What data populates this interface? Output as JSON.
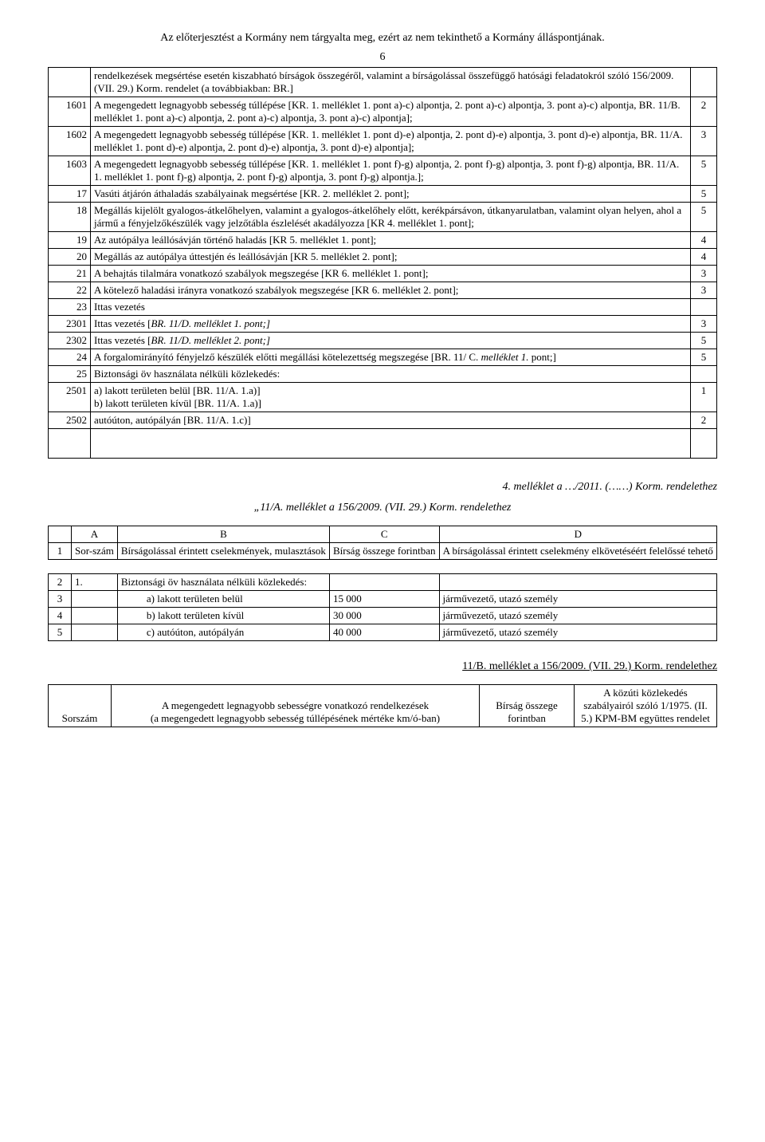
{
  "header": "Az előterjesztést a Kormány nem tárgyalta meg, ezért az nem tekinthető a Kormány álláspontjának.",
  "page_number": "6",
  "table1": {
    "rows": [
      {
        "n": "",
        "text": "rendelkezések megsértése esetén kiszabható bírságok összegéről, valamint a bírságolással összefüggő hatósági feladatokról szóló 156/2009. (VII. 29.) Korm. rendelet (a továbbiakban: BR.]",
        "v": ""
      },
      {
        "n": "1601",
        "text": "A megengedett legnagyobb sebesség túllépése [KR. 1. melléklet 1. pont a)-c) alpontja, 2. pont a)-c) alpontja, 3. pont a)-c) alpontja, BR. 11/B. melléklet 1. pont a)-c) alpontja, 2. pont a)-c) alpontja, 3. pont a)-c) alpontja];",
        "v": "2"
      },
      {
        "n": "1602",
        "text": "A megengedett legnagyobb sebesség túllépése [KR. 1. melléklet 1. pont d)-e) alpontja, 2. pont d)-e) alpontja, 3. pont d)-e) alpontja, BR. 11/A. melléklet 1. pont d)-e) alpontja, 2. pont d)-e) alpontja, 3. pont d)-e) alpontja];",
        "v": "3"
      },
      {
        "n": "1603",
        "text": "A megengedett legnagyobb sebesség túllépése [KR. 1. melléklet 1. pont f)-g) alpontja, 2. pont f)-g) alpontja, 3. pont f)-g) alpontja, BR. 11/A. 1. melléklet 1. pont f)-g) alpontja, 2. pont f)-g) alpontja, 3. pont f)-g) alpontja.];",
        "v": "5"
      },
      {
        "n": "17",
        "text": "Vasúti átjárón áthaladás szabályainak megsértése [KR. 2. melléklet 2. pont];",
        "v": "5"
      },
      {
        "n": "18",
        "text": "Megállás kijelölt gyalogos-átkelőhelyen, valamint a gyalogos-átkelőhely előtt, kerékpársávon, útkanyarulatban, valamint olyan helyen, ahol a jármű a fényjelzőkészülék vagy jelzőtábla észlelését akadályozza [KR 4. melléklet 1. pont];",
        "v": "5"
      },
      {
        "n": "19",
        "text": "Az autópálya leállósávján történő haladás [KR 5. melléklet 1. pont];",
        "v": "4"
      },
      {
        "n": "20",
        "text": "Megállás az autópálya úttestjén és leállósávján [KR 5. melléklet 2. pont];",
        "v": "4"
      },
      {
        "n": "21",
        "text": "A behajtás tilalmára vonatkozó szabályok megszegése [KR 6. melléklet 1. pont];",
        "v": "3"
      },
      {
        "n": "22",
        "text": "A kötelező haladási irányra vonatkozó szabályok megszegése [KR 6. melléklet 2. pont];",
        "v": "3"
      },
      {
        "n": "23",
        "text": "Ittas vezetés",
        "v": ""
      },
      {
        "n": "2301",
        "text": "Ittas vezetés [BR. 11/D. melléklet 1. pont;]",
        "v": "3",
        "italic": true
      },
      {
        "n": "2302",
        "text": "Ittas vezetés [BR. 11/D. melléklet 2. pont;]",
        "v": "5",
        "italic": true
      },
      {
        "n": "24",
        "text": " A forgalomirányító fényjelző készülék előtti megállási kötelezettség megszegése [BR. 11/ C. melléklet 1. pont;]",
        "v": "5",
        "italic2": true
      },
      {
        "n": "25",
        "text": "Biztonsági öv használata nélküli közlekedés:",
        "v": ""
      },
      {
        "n": "2501",
        "text": "a) lakott területen belül [BR. 11/A. 1.a)]\nb) lakott területen kívül [BR. 11/A. 1.a)]",
        "v": "1"
      },
      {
        "n": "2502",
        "text": "autóúton, autópályán [BR. 11/A. 1.c)]",
        "v": "2"
      }
    ]
  },
  "sec4": {
    "title": "4. melléklet a …/2011. (……) Korm. rendelethez",
    "subtitle": "„11/A. melléklet a 156/2009. (VII. 29.) Korm. rendelethez"
  },
  "table2": {
    "head": [
      "A",
      "B",
      "C",
      "D"
    ],
    "row1": {
      "n": "1",
      "a": "Sor-szám",
      "b": "Bírságolással érintett cselekmények, mulasztások",
      "c": "Bírság összege forintban",
      "d": "A bírságolással érintett cselekmény elkövetéséért felelőssé tehető"
    },
    "rows": [
      {
        "n": "2",
        "a": "1.",
        "b": "Biztonsági öv használata nélküli közlekedés:",
        "c": "",
        "d": ""
      },
      {
        "n": "3",
        "a": "",
        "b": "a) lakott területen belül",
        "c": "15 000",
        "d": "járművezető, utazó személy"
      },
      {
        "n": "4",
        "a": "",
        "b": "b) lakott területen kívül",
        "c": "30 000",
        "d": "járművezető, utazó személy"
      },
      {
        "n": "5",
        "a": "",
        "b": "c) autóúton, autópályán",
        "c": "40 000",
        "d": "járművezető, utazó személy"
      }
    ]
  },
  "sec11b": "11/B. melléklet a 156/2009. (VII. 29.) Korm. rendelethez",
  "table3": {
    "a": "Sorszám",
    "b": "A megengedett legnagyobb sebességre vonatkozó rendelkezések\n(a megengedett legnagyobb sebesség túllépésének mértéke km/ó-ban)",
    "c": "Bírság összege forintban",
    "d": "A közúti közlekedés szabályairól szóló 1/1975. (II. 5.) KPM-BM együttes rendelet"
  }
}
